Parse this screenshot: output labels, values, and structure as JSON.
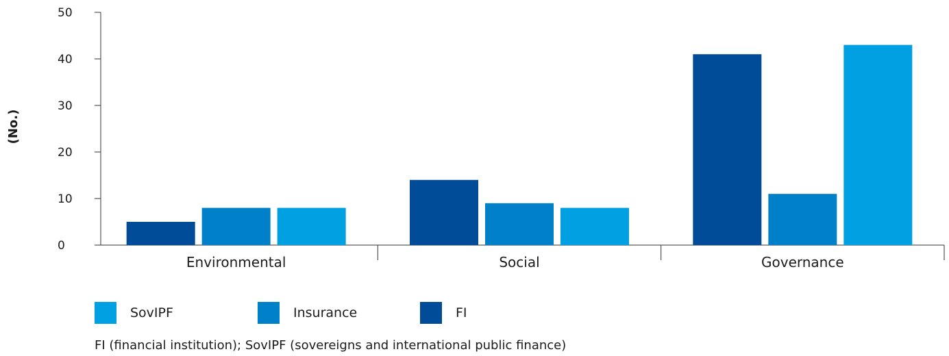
{
  "chart_data": {
    "type": "bar",
    "title": "",
    "xlabel": "",
    "ylabel": "(No.)",
    "categories": [
      "Environmental",
      "Social",
      "Governance"
    ],
    "series": [
      {
        "name": "FI",
        "color": "#004C99",
        "values": [
          5,
          14,
          41
        ]
      },
      {
        "name": "Insurance",
        "color": "#0080C9",
        "values": [
          8,
          9,
          11
        ]
      },
      {
        "name": "SovIPF",
        "color": "#00A0E2",
        "values": [
          8,
          8,
          43
        ]
      }
    ],
    "ylim": [
      0,
      50
    ],
    "yticks": [
      "0",
      "10",
      "20",
      "30",
      "40",
      "50"
    ],
    "grid": false,
    "legend_placement": "bottom"
  },
  "legend": [
    {
      "label": "SovIPF",
      "color": "#00A0E2"
    },
    {
      "label": "Insurance",
      "color": "#0080C9"
    },
    {
      "label": "FI",
      "color": "#004C99"
    }
  ],
  "footnote": "FI (financial institution); SovIPF (sovereigns and international public finance)"
}
